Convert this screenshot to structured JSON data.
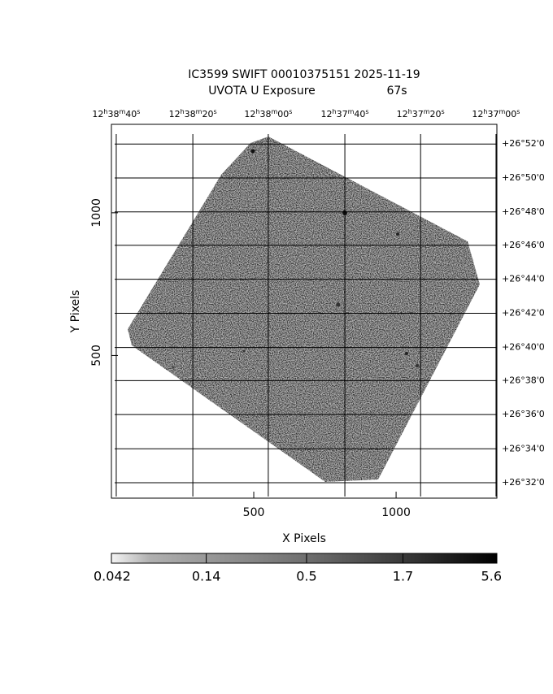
{
  "chart_data": {
    "type": "image",
    "title": "IC3599 SWIFT 00010375151 2025-11-19",
    "subtitle": "UVOTA U Exposure",
    "exposure": "67s",
    "x_label": "X Pixels",
    "y_label": "Y Pixels",
    "xlim": [
      0,
      1354
    ],
    "ylim": [
      0,
      1310
    ],
    "xticks": [
      500,
      1000
    ],
    "yticks": [
      500,
      1000
    ],
    "ra_ticks": [
      {
        "value": 17,
        "label": "12h38m40s"
      },
      {
        "value": 286,
        "label": "12h38m20s"
      },
      {
        "value": 551,
        "label": "12h38m00s"
      },
      {
        "value": 820,
        "label": "12h37m40s"
      },
      {
        "value": 1086,
        "label": "12h37m20s"
      },
      {
        "value": 1351,
        "label": "12h37m00s"
      }
    ],
    "dec_ticks": [
      {
        "value": 1241,
        "label": "+26°52'0"
      },
      {
        "value": 1122,
        "label": "+26°50'0"
      },
      {
        "value": 1003,
        "label": "+26°48'0"
      },
      {
        "value": 886,
        "label": "+26°46'0"
      },
      {
        "value": 767,
        "label": "+26°44'0"
      },
      {
        "value": 648,
        "label": "+26°42'0"
      },
      {
        "value": 528,
        "label": "+26°40'0"
      },
      {
        "value": 412,
        "label": "+26°38'0"
      },
      {
        "value": 293,
        "label": "+26°36'0"
      },
      {
        "value": 173,
        "label": "+26°34'0"
      },
      {
        "value": 54,
        "label": "+26°32'0"
      }
    ],
    "colorbar": {
      "lim": [
        0.042,
        5.6
      ],
      "log": true,
      "ticks": [
        0.042,
        0.14,
        0.5,
        1.7,
        5.6
      ]
    }
  }
}
